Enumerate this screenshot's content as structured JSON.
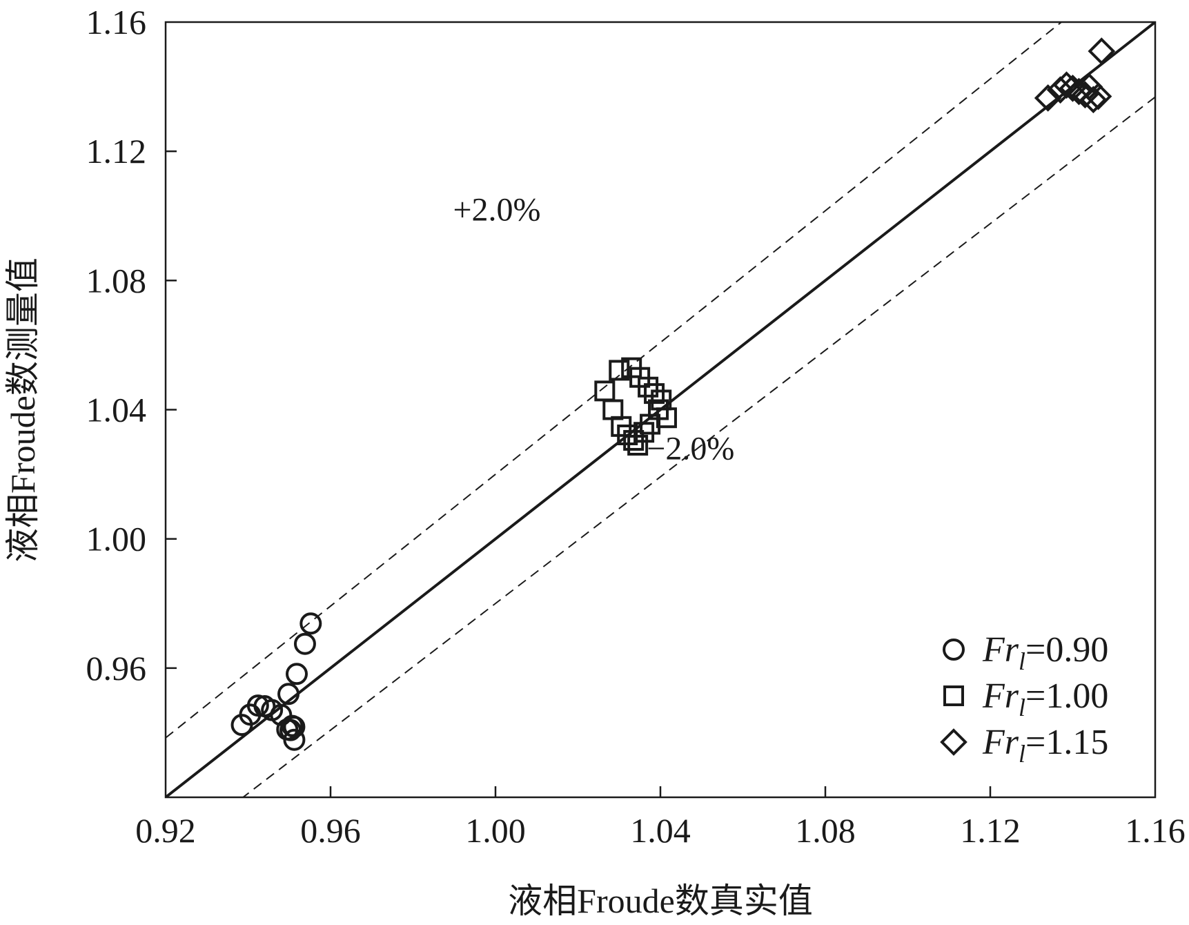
{
  "chart_data": {
    "type": "scatter",
    "xlabel": "液相Froude数真实值",
    "ylabel": "液相Froude数测量值",
    "xlim": [
      0.92,
      1.16
    ],
    "ylim": [
      0.92,
      1.16
    ],
    "x_ticks": [
      "0.92",
      "0.96",
      "1.00",
      "1.04",
      "1.08",
      "1.12",
      "1.16"
    ],
    "y_ticks": [
      "0.96",
      "1.00",
      "1.04",
      "1.08",
      "1.12",
      "1.16"
    ],
    "grid": false,
    "legend_position": "bottom-right",
    "reference_lines": [
      {
        "kind": "identity",
        "style": "solid",
        "slope": 1.0
      },
      {
        "kind": "upper_bound",
        "style": "dashed",
        "slope": 1.02
      },
      {
        "kind": "lower_bound",
        "style": "dashed",
        "slope": 0.98
      }
    ],
    "annotations": [
      {
        "text": "+2.0%",
        "x": 1.0,
        "y": 1.102
      },
      {
        "text": "−2.0%",
        "x": 1.047,
        "y": 1.028
      }
    ],
    "series": [
      {
        "legend_prefix": "Fr",
        "legend_sub": "l",
        "legend_value": "=0.90",
        "marker": "circle",
        "points": [
          [
            0.9385,
            0.9424
          ],
          [
            0.9405,
            0.9456
          ],
          [
            0.9424,
            0.9484
          ],
          [
            0.944,
            0.9482
          ],
          [
            0.9458,
            0.947
          ],
          [
            0.948,
            0.9455
          ],
          [
            0.9495,
            0.941
          ],
          [
            0.9503,
            0.9408
          ],
          [
            0.9507,
            0.9421
          ],
          [
            0.9512,
            0.9418
          ],
          [
            0.9498,
            0.952
          ],
          [
            0.9512,
            0.9378
          ],
          [
            0.9518,
            0.9582
          ],
          [
            0.9538,
            0.9675
          ],
          [
            0.9552,
            0.9738
          ]
        ]
      },
      {
        "legend_prefix": "Fr",
        "legend_sub": "l",
        "legend_value": "=1.00",
        "marker": "square",
        "points": [
          [
            1.0265,
            1.0458
          ],
          [
            1.0285,
            1.04
          ],
          [
            1.03,
            1.0522
          ],
          [
            1.0305,
            1.0348
          ],
          [
            1.032,
            1.0322
          ],
          [
            1.033,
            1.053
          ],
          [
            1.0335,
            1.0305
          ],
          [
            1.0345,
            1.029
          ],
          [
            1.035,
            1.05
          ],
          [
            1.036,
            1.033
          ],
          [
            1.037,
            1.047
          ],
          [
            1.0375,
            1.0355
          ],
          [
            1.0385,
            1.045
          ],
          [
            1.0395,
            1.04
          ],
          [
            1.0402,
            1.043
          ],
          [
            1.0415,
            1.0375
          ]
        ]
      },
      {
        "legend_prefix": "Fr",
        "legend_sub": "l",
        "legend_value": "=1.15",
        "marker": "diamond",
        "points": [
          [
            1.134,
            1.1365
          ],
          [
            1.137,
            1.139
          ],
          [
            1.1385,
            1.1405
          ],
          [
            1.14,
            1.1395
          ],
          [
            1.1415,
            1.1385
          ],
          [
            1.143,
            1.1375
          ],
          [
            1.144,
            1.14
          ],
          [
            1.145,
            1.136
          ],
          [
            1.1462,
            1.137
          ],
          [
            1.147,
            1.151
          ]
        ]
      }
    ]
  }
}
